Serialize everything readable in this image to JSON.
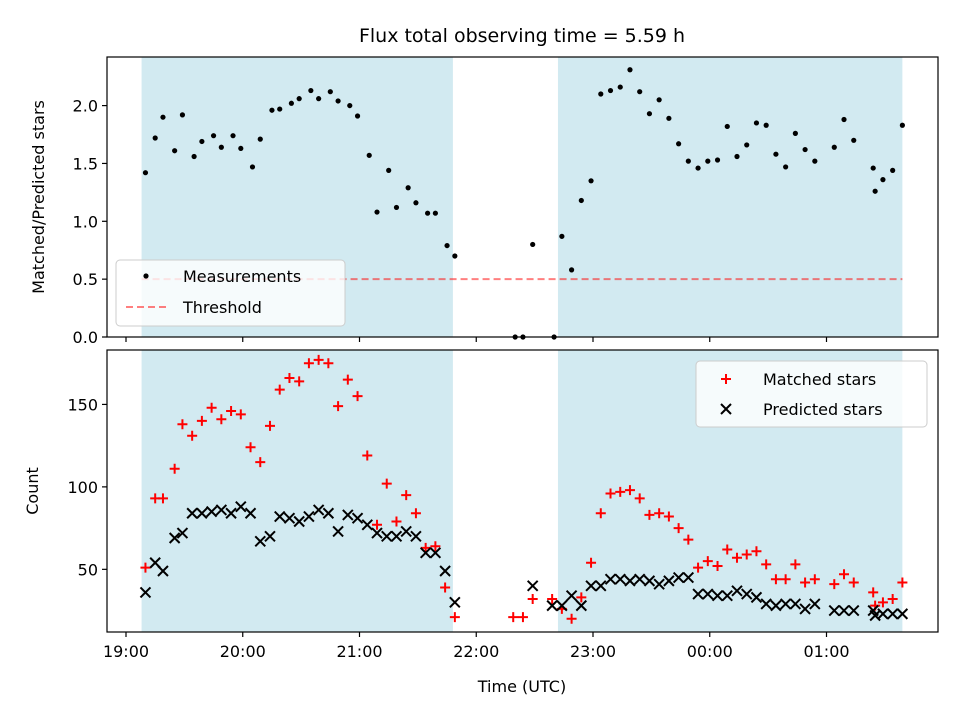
{
  "title": "Flux total observing time = 5.59 h",
  "xlabel": "Time (UTC)",
  "x_ticks": [
    "19:00",
    "20:00",
    "21:00",
    "22:00",
    "23:00",
    "00:00",
    "01:00"
  ],
  "colors": {
    "shade": "#add8e6",
    "threshold": "#ff0000",
    "matched": "#ff0000",
    "predicted": "#000000",
    "measure": "#000000"
  },
  "chart_data": [
    {
      "type": "scatter",
      "ylabel": "Matched/Predicted stars",
      "ylim": [
        0,
        2.42
      ],
      "y_ticks": [
        "0.0",
        "0.5",
        "1.0",
        "1.5",
        "2.0"
      ],
      "legend_position": "lower-left",
      "threshold": {
        "name": "Threshold",
        "value": 0.5,
        "x_range": [
          "19:08",
          "01:39"
        ]
      },
      "shaded_intervals": [
        [
          "19:08",
          "21:48"
        ],
        [
          "22:42",
          "01:39"
        ]
      ],
      "series": [
        {
          "name": "Measurements",
          "points": [
            [
              "19:10",
              1.42
            ],
            [
              "19:15",
              1.72
            ],
            [
              "19:19",
              1.9
            ],
            [
              "19:25",
              1.61
            ],
            [
              "19:29",
              1.92
            ],
            [
              "19:35",
              1.56
            ],
            [
              "19:39",
              1.69
            ],
            [
              "19:45",
              1.74
            ],
            [
              "19:49",
              1.64
            ],
            [
              "19:55",
              1.74
            ],
            [
              "19:59",
              1.63
            ],
            [
              "20:05",
              1.47
            ],
            [
              "20:09",
              1.71
            ],
            [
              "20:15",
              1.96
            ],
            [
              "20:19",
              1.97
            ],
            [
              "20:25",
              2.02
            ],
            [
              "20:29",
              2.06
            ],
            [
              "20:35",
              2.13
            ],
            [
              "20:39",
              2.06
            ],
            [
              "20:45",
              2.12
            ],
            [
              "20:49",
              2.04
            ],
            [
              "20:55",
              2.0
            ],
            [
              "20:59",
              1.91
            ],
            [
              "21:05",
              1.57
            ],
            [
              "21:09",
              1.08
            ],
            [
              "21:15",
              1.44
            ],
            [
              "21:19",
              1.12
            ],
            [
              "21:25",
              1.29
            ],
            [
              "21:29",
              1.16
            ],
            [
              "21:35",
              1.07
            ],
            [
              "21:39",
              1.07
            ],
            [
              "21:45",
              0.79
            ],
            [
              "21:49",
              0.7
            ],
            [
              "22:20",
              0.0
            ],
            [
              "22:24",
              0.0
            ],
            [
              "22:29",
              0.8
            ],
            [
              "22:40",
              0.0
            ],
            [
              "22:44",
              0.87
            ],
            [
              "22:49",
              0.58
            ],
            [
              "22:54",
              1.18
            ],
            [
              "22:59",
              1.35
            ],
            [
              "23:04",
              2.1
            ],
            [
              "23:09",
              2.13
            ],
            [
              "23:14",
              2.16
            ],
            [
              "23:19",
              2.31
            ],
            [
              "23:24",
              2.12
            ],
            [
              "23:29",
              1.93
            ],
            [
              "23:34",
              2.05
            ],
            [
              "23:39",
              1.89
            ],
            [
              "23:44",
              1.67
            ],
            [
              "23:49",
              1.52
            ],
            [
              "23:54",
              1.46
            ],
            [
              "23:59",
              1.52
            ],
            [
              "00:04",
              1.53
            ],
            [
              "00:09",
              1.82
            ],
            [
              "00:14",
              1.56
            ],
            [
              "00:19",
              1.66
            ],
            [
              "00:24",
              1.85
            ],
            [
              "00:29",
              1.83
            ],
            [
              "00:34",
              1.58
            ],
            [
              "00:39",
              1.47
            ],
            [
              "00:44",
              1.76
            ],
            [
              "00:49",
              1.62
            ],
            [
              "00:54",
              1.52
            ],
            [
              "01:04",
              1.64
            ],
            [
              "01:09",
              1.88
            ],
            [
              "01:14",
              1.7
            ],
            [
              "01:24",
              1.46
            ],
            [
              "01:25",
              1.26
            ],
            [
              "01:29",
              1.36
            ],
            [
              "01:34",
              1.44
            ],
            [
              "01:39",
              1.83
            ]
          ]
        }
      ]
    },
    {
      "type": "scatter",
      "ylabel": "Count",
      "ylim": [
        12,
        183
      ],
      "y_ticks": [
        "50",
        "100",
        "150"
      ],
      "legend_position": "upper-right",
      "shaded_intervals": [
        [
          "19:08",
          "21:48"
        ],
        [
          "22:42",
          "01:39"
        ]
      ],
      "series": [
        {
          "name": "Matched stars",
          "marker": "plus",
          "points": [
            [
              "19:10",
              51
            ],
            [
              "19:15",
              93
            ],
            [
              "19:19",
              93
            ],
            [
              "19:25",
              111
            ],
            [
              "19:29",
              138
            ],
            [
              "19:34",
              131
            ],
            [
              "19:39",
              140
            ],
            [
              "19:44",
              148
            ],
            [
              "19:49",
              141
            ],
            [
              "19:54",
              146
            ],
            [
              "19:59",
              144
            ],
            [
              "20:04",
              124
            ],
            [
              "20:09",
              115
            ],
            [
              "20:14",
              137
            ],
            [
              "20:19",
              159
            ],
            [
              "20:24",
              166
            ],
            [
              "20:29",
              164
            ],
            [
              "20:34",
              175
            ],
            [
              "20:39",
              177
            ],
            [
              "20:44",
              175
            ],
            [
              "20:49",
              149
            ],
            [
              "20:54",
              165
            ],
            [
              "20:59",
              155
            ],
            [
              "21:04",
              119
            ],
            [
              "21:09",
              77
            ],
            [
              "21:14",
              102
            ],
            [
              "21:19",
              79
            ],
            [
              "21:24",
              95
            ],
            [
              "21:29",
              84
            ],
            [
              "21:34",
              63
            ],
            [
              "21:39",
              64
            ],
            [
              "21:44",
              39
            ],
            [
              "21:49",
              21
            ],
            [
              "22:19",
              21
            ],
            [
              "22:24",
              21
            ],
            [
              "22:29",
              32
            ],
            [
              "22:39",
              32
            ],
            [
              "22:44",
              26
            ],
            [
              "22:49",
              20
            ],
            [
              "22:54",
              33
            ],
            [
              "22:59",
              54
            ],
            [
              "23:04",
              84
            ],
            [
              "23:09",
              96
            ],
            [
              "23:14",
              97
            ],
            [
              "23:19",
              98
            ],
            [
              "23:24",
              93
            ],
            [
              "23:29",
              83
            ],
            [
              "23:34",
              84
            ],
            [
              "23:39",
              82
            ],
            [
              "23:44",
              75
            ],
            [
              "23:49",
              68
            ],
            [
              "23:54",
              51
            ],
            [
              "23:59",
              55
            ],
            [
              "00:04",
              52
            ],
            [
              "00:09",
              62
            ],
            [
              "00:14",
              57
            ],
            [
              "00:19",
              59
            ],
            [
              "00:24",
              61
            ],
            [
              "00:29",
              53
            ],
            [
              "00:34",
              44
            ],
            [
              "00:39",
              44
            ],
            [
              "00:44",
              53
            ],
            [
              "00:49",
              42
            ],
            [
              "00:54",
              44
            ],
            [
              "01:04",
              41
            ],
            [
              "01:09",
              47
            ],
            [
              "01:14",
              42
            ],
            [
              "01:24",
              36
            ],
            [
              "01:25",
              28
            ],
            [
              "01:29",
              30
            ],
            [
              "01:34",
              32
            ],
            [
              "01:39",
              42
            ]
          ]
        },
        {
          "name": "Predicted stars",
          "marker": "x",
          "points": [
            [
              "19:10",
              36
            ],
            [
              "19:15",
              54
            ],
            [
              "19:19",
              49
            ],
            [
              "19:25",
              69
            ],
            [
              "19:29",
              72
            ],
            [
              "19:34",
              84
            ],
            [
              "19:39",
              84
            ],
            [
              "19:44",
              85
            ],
            [
              "19:49",
              86
            ],
            [
              "19:54",
              84
            ],
            [
              "19:59",
              88
            ],
            [
              "20:04",
              84
            ],
            [
              "20:09",
              67
            ],
            [
              "20:14",
              70
            ],
            [
              "20:19",
              82
            ],
            [
              "20:24",
              81
            ],
            [
              "20:29",
              79
            ],
            [
              "20:34",
              82
            ],
            [
              "20:39",
              86
            ],
            [
              "20:44",
              84
            ],
            [
              "20:49",
              73
            ],
            [
              "20:54",
              83
            ],
            [
              "20:59",
              81
            ],
            [
              "21:04",
              77
            ],
            [
              "21:09",
              72
            ],
            [
              "21:14",
              70
            ],
            [
              "21:19",
              70
            ],
            [
              "21:24",
              73
            ],
            [
              "21:29",
              70
            ],
            [
              "21:34",
              60
            ],
            [
              "21:39",
              60
            ],
            [
              "21:44",
              49
            ],
            [
              "21:49",
              30
            ],
            [
              "22:29",
              40
            ],
            [
              "22:39",
              28
            ],
            [
              "22:44",
              28
            ],
            [
              "22:49",
              34
            ],
            [
              "22:54",
              28
            ],
            [
              "22:59",
              40
            ],
            [
              "23:04",
              40
            ],
            [
              "23:09",
              44
            ],
            [
              "23:14",
              44
            ],
            [
              "23:19",
              43
            ],
            [
              "23:24",
              44
            ],
            [
              "23:29",
              43
            ],
            [
              "23:34",
              41
            ],
            [
              "23:39",
              43
            ],
            [
              "23:44",
              45
            ],
            [
              "23:49",
              45
            ],
            [
              "23:54",
              35
            ],
            [
              "23:59",
              35
            ],
            [
              "00:04",
              34
            ],
            [
              "00:09",
              34
            ],
            [
              "00:14",
              37
            ],
            [
              "00:19",
              35
            ],
            [
              "00:24",
              33
            ],
            [
              "00:29",
              29
            ],
            [
              "00:34",
              28
            ],
            [
              "00:39",
              29
            ],
            [
              "00:44",
              29
            ],
            [
              "00:49",
              26
            ],
            [
              "00:54",
              29
            ],
            [
              "01:04",
              25
            ],
            [
              "01:09",
              25
            ],
            [
              "01:14",
              25
            ],
            [
              "01:24",
              25
            ],
            [
              "01:25",
              22
            ],
            [
              "01:29",
              23
            ],
            [
              "01:34",
              23
            ],
            [
              "01:39",
              23
            ]
          ]
        }
      ]
    }
  ]
}
